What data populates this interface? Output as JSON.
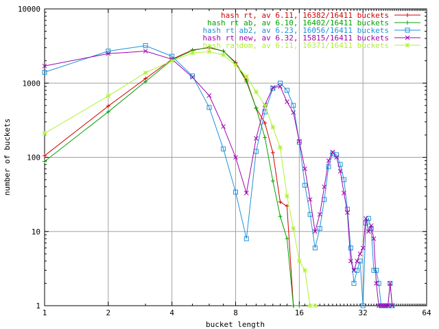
{
  "chart_data": {
    "type": "line",
    "title": "",
    "xlabel": "bucket length",
    "ylabel": "number of buckets",
    "xscale": "log2",
    "yscale": "log10",
    "xlim": [
      1,
      64
    ],
    "ylim": [
      1,
      10000
    ],
    "x_ticks": [
      1,
      2,
      4,
      8,
      16,
      32,
      64
    ],
    "x_tick_labels": [
      "1",
      "2",
      "4",
      "8",
      "16",
      "32",
      "64"
    ],
    "y_ticks": [
      1,
      10,
      100,
      1000,
      10000
    ],
    "y_tick_labels": [
      "1",
      "10",
      "100",
      "1000",
      "10000"
    ],
    "grid": true,
    "legend_position": "top-right",
    "series": [
      {
        "name": "hash rt, av 6.11, 16382/16411 buckets",
        "color": "#d00000",
        "marker": "plus",
        "points": [
          [
            1,
            105
          ],
          [
            2,
            490
          ],
          [
            3,
            1150
          ],
          [
            4,
            2100
          ],
          [
            5,
            2800
          ],
          [
            6,
            3000
          ],
          [
            7,
            2700
          ],
          [
            8,
            1900
          ],
          [
            9,
            1100
          ],
          [
            10,
            460
          ],
          [
            11,
            290
          ],
          [
            12,
            115
          ],
          [
            13,
            25
          ],
          [
            14,
            22
          ],
          [
            15,
            1
          ]
        ]
      },
      {
        "name": "hash rt ab, av 6.10, 16402/16411 buckets",
        "color": "#00a000",
        "marker": "plus",
        "points": [
          [
            1,
            88
          ],
          [
            2,
            410
          ],
          [
            3,
            1050
          ],
          [
            4,
            2050
          ],
          [
            5,
            2750
          ],
          [
            6,
            3050
          ],
          [
            7,
            2700
          ],
          [
            8,
            1850
          ],
          [
            9,
            1050
          ],
          [
            10,
            460
          ],
          [
            11,
            185
          ],
          [
            12,
            48
          ],
          [
            13,
            16
          ],
          [
            14,
            8
          ],
          [
            15,
            1
          ],
          [
            16,
            1
          ]
        ]
      },
      {
        "name": "hash rt ab2, av 6.23, 16056/16411 buckets",
        "color": "#1e90d8",
        "marker": "square",
        "points": [
          [
            1,
            1400
          ],
          [
            2,
            2700
          ],
          [
            3,
            3200
          ],
          [
            4,
            2300
          ],
          [
            5,
            1250
          ],
          [
            6,
            470
          ],
          [
            7,
            130
          ],
          [
            8,
            34
          ],
          [
            9,
            8
          ],
          [
            10,
            120
          ],
          [
            11,
            410
          ],
          [
            12,
            850
          ],
          [
            13,
            1000
          ],
          [
            14,
            800
          ],
          [
            15,
            500
          ],
          [
            16,
            160
          ],
          [
            17,
            42
          ],
          [
            18,
            17
          ],
          [
            19,
            6
          ],
          [
            20,
            11
          ],
          [
            21,
            27
          ],
          [
            22,
            75
          ],
          [
            23,
            112
          ],
          [
            24,
            108
          ],
          [
            25,
            80
          ],
          [
            26,
            50
          ],
          [
            27,
            20
          ],
          [
            28,
            6
          ],
          [
            29,
            2
          ],
          [
            30,
            3
          ],
          [
            31,
            4
          ],
          [
            32,
            1
          ],
          [
            33,
            13
          ],
          [
            34,
            15
          ],
          [
            35,
            11
          ],
          [
            36,
            3
          ],
          [
            37,
            3
          ],
          [
            38,
            2
          ],
          [
            39,
            1
          ],
          [
            40,
            1
          ],
          [
            41,
            1
          ],
          [
            42,
            1
          ],
          [
            43,
            2
          ],
          [
            44,
            1
          ]
        ]
      },
      {
        "name": "hash rt new, av 6.32, 15815/16411 buckets",
        "color": "#a000b0",
        "marker": "cross",
        "points": [
          [
            1,
            1700
          ],
          [
            2,
            2500
          ],
          [
            3,
            2700
          ],
          [
            4,
            2100
          ],
          [
            5,
            1200
          ],
          [
            6,
            680
          ],
          [
            7,
            260
          ],
          [
            8,
            100
          ],
          [
            9,
            33
          ],
          [
            10,
            180
          ],
          [
            11,
            510
          ],
          [
            12,
            870
          ],
          [
            13,
            900
          ],
          [
            14,
            560
          ],
          [
            15,
            400
          ],
          [
            16,
            165
          ],
          [
            17,
            70
          ],
          [
            18,
            27
          ],
          [
            19,
            10
          ],
          [
            20,
            17
          ],
          [
            21,
            40
          ],
          [
            22,
            90
          ],
          [
            23,
            118
          ],
          [
            24,
            100
          ],
          [
            25,
            65
          ],
          [
            26,
            33
          ],
          [
            27,
            18
          ],
          [
            28,
            4
          ],
          [
            29,
            3
          ],
          [
            30,
            4
          ],
          [
            31,
            5
          ],
          [
            32,
            6
          ],
          [
            33,
            15
          ],
          [
            34,
            10
          ],
          [
            35,
            12
          ],
          [
            36,
            8
          ],
          [
            37,
            2
          ],
          [
            38,
            1
          ],
          [
            39,
            1
          ],
          [
            40,
            1
          ],
          [
            41,
            1
          ],
          [
            42,
            1
          ],
          [
            43,
            2
          ],
          [
            44,
            1
          ]
        ]
      },
      {
        "name": "hash random, av 6.11, 16371/16411 buckets",
        "color": "#b0f030",
        "marker": "star",
        "points": [
          [
            1,
            210
          ],
          [
            2,
            670
          ],
          [
            3,
            1380
          ],
          [
            4,
            2000
          ],
          [
            5,
            2550
          ],
          [
            6,
            2650
          ],
          [
            7,
            2400
          ],
          [
            8,
            1750
          ],
          [
            9,
            1230
          ],
          [
            10,
            760
          ],
          [
            11,
            500
          ],
          [
            12,
            255
          ],
          [
            13,
            135
          ],
          [
            14,
            30
          ],
          [
            15,
            11
          ],
          [
            16,
            4
          ],
          [
            17,
            3
          ],
          [
            18,
            1
          ],
          [
            19,
            1
          ]
        ]
      }
    ]
  }
}
